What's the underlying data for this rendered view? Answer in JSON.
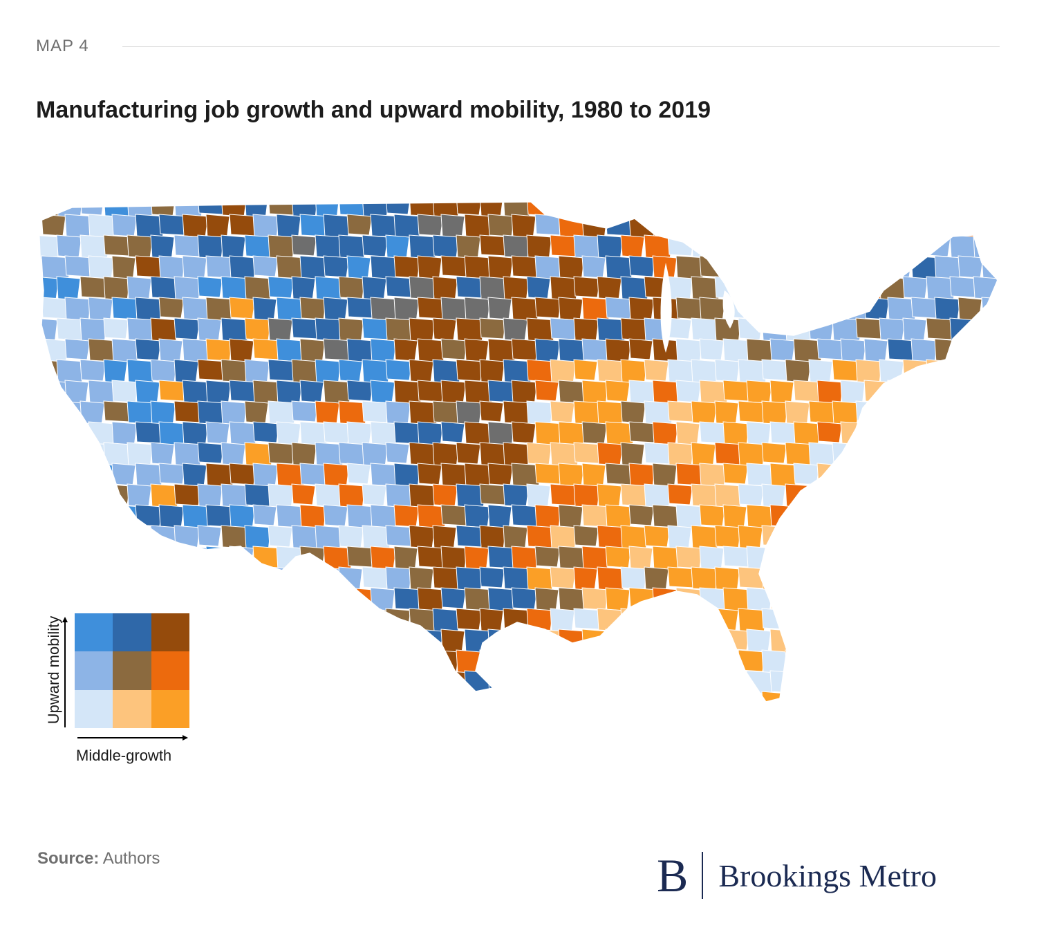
{
  "header": {
    "kicker": "MAP 4",
    "title": "Manufacturing job growth and upward mobility, 1980 to 2019"
  },
  "map": {
    "subject": "United States counties / commuting zones",
    "palette": {
      "high_mobility_low_growth": "#3f8fdb",
      "high_mobility_mid_growth": "#2f68a9",
      "high_mobility_high_growth": "#954b0c",
      "mid_mobility_low_growth": "#8db4e6",
      "mid_mobility_mid_growth": "#8b6a3f",
      "mid_mobility_high_growth": "#ec6a0d",
      "low_mobility_low_growth": "#d4e6f8",
      "low_mobility_mid_growth": "#fdc47d",
      "low_mobility_high_growth": "#fb9f26",
      "no_data": "#6e6e6e"
    }
  },
  "legend": {
    "y_label": "Upward mobility",
    "x_label": "Middle-growth",
    "cells": [
      [
        "#3f8fdb",
        "#2f68a9",
        "#954b0c"
      ],
      [
        "#8db4e6",
        "#8b6a3f",
        "#ec6a0d"
      ],
      [
        "#d4e6f8",
        "#fdc47d",
        "#fb9f26"
      ]
    ]
  },
  "footer": {
    "source_label": "Source:",
    "source_text": " Authors",
    "logo_mark": "B",
    "logo_text": "Brookings Metro"
  }
}
